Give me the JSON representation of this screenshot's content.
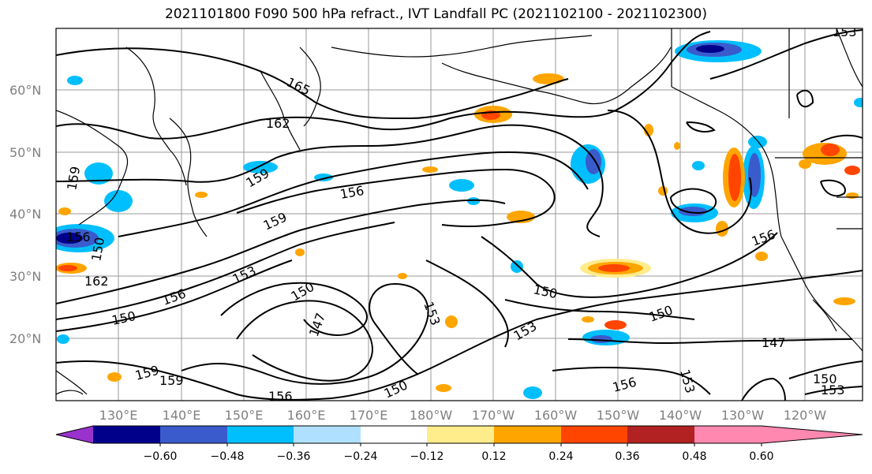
{
  "title": "2021101800 F090 500 hPa refract., IVT Landfall PC (2021102100 - 2021102300)",
  "map": {
    "lat_labels": [
      "60°N",
      "50°N",
      "40°N",
      "30°N",
      "20°N"
    ],
    "lon_labels": [
      "130°E",
      "140°E",
      "150°E",
      "160°E",
      "170°E",
      "180°W",
      "170°W",
      "160°W",
      "150°W",
      "140°W",
      "130°W",
      "120°W"
    ],
    "contour_labels": [
      "165",
      "162",
      "159",
      "159",
      "156",
      "159",
      "156",
      "150",
      "162",
      "156",
      "153",
      "150",
      "150",
      "147",
      "153",
      "159",
      "159",
      "156",
      "150",
      "153",
      "156",
      "153",
      "150",
      "150",
      "147",
      "150",
      "153",
      "156",
      "153"
    ],
    "land_line_color": "#000000",
    "grid_color": "#999999"
  },
  "colorbar": {
    "colors": [
      "#9932cc",
      "#00008b",
      "#3a5bcc",
      "#00bfff",
      "#b0e0ff",
      "#ffffff",
      "#ffec8b",
      "#ffa500",
      "#ff4500",
      "#b22222",
      "#ff88b0"
    ],
    "tick_labels": [
      "−0.60",
      "−0.48",
      "−0.36",
      "−0.24",
      "−0.12",
      "0.12",
      "0.24",
      "0.36",
      "0.48",
      "0.60"
    ]
  }
}
